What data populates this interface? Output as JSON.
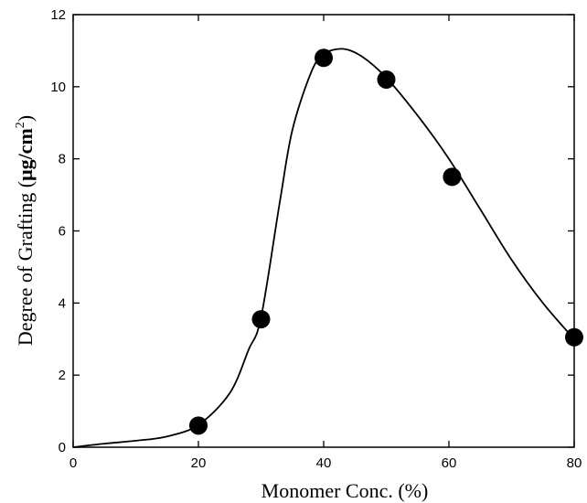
{
  "chart_data": {
    "type": "scatter",
    "xlabel": "Monomer Conc. (%)",
    "ylabel_main": "Degree of Grafting (",
    "ylabel_unit": "μg/cm",
    "ylabel_sup": "2",
    "ylabel_close": ")",
    "xlim": [
      0,
      80
    ],
    "ylim": [
      0,
      12
    ],
    "xticks": [
      0,
      20,
      40,
      60,
      80
    ],
    "yticks": [
      0,
      2,
      4,
      6,
      8,
      10,
      12
    ],
    "xtick_labels": [
      "0",
      "20",
      "40",
      "60",
      "80"
    ],
    "ytick_labels": [
      "0",
      "2",
      "4",
      "6",
      "8",
      "10",
      "12"
    ],
    "grid": false,
    "points": [
      {
        "x": 20,
        "y": 0.6
      },
      {
        "x": 30,
        "y": 3.55
      },
      {
        "x": 40,
        "y": 10.8
      },
      {
        "x": 50,
        "y": 10.2
      },
      {
        "x": 60.5,
        "y": 7.5
      },
      {
        "x": 80,
        "y": 3.05
      }
    ],
    "curve": [
      {
        "x": 0,
        "y": 0
      },
      {
        "x": 5,
        "y": 0.1
      },
      {
        "x": 10,
        "y": 0.18
      },
      {
        "x": 15,
        "y": 0.3
      },
      {
        "x": 20,
        "y": 0.62
      },
      {
        "x": 25,
        "y": 1.5
      },
      {
        "x": 28,
        "y": 2.7
      },
      {
        "x": 30,
        "y": 3.6
      },
      {
        "x": 33,
        "y": 6.8
      },
      {
        "x": 35,
        "y": 8.8
      },
      {
        "x": 38,
        "y": 10.4
      },
      {
        "x": 40,
        "y": 10.9
      },
      {
        "x": 43,
        "y": 11.05
      },
      {
        "x": 46,
        "y": 10.85
      },
      {
        "x": 50,
        "y": 10.25
      },
      {
        "x": 55,
        "y": 9.2
      },
      {
        "x": 60,
        "y": 8.0
      },
      {
        "x": 65,
        "y": 6.6
      },
      {
        "x": 70,
        "y": 5.2
      },
      {
        "x": 75,
        "y": 4.0
      },
      {
        "x": 80,
        "y": 3.0
      }
    ]
  }
}
